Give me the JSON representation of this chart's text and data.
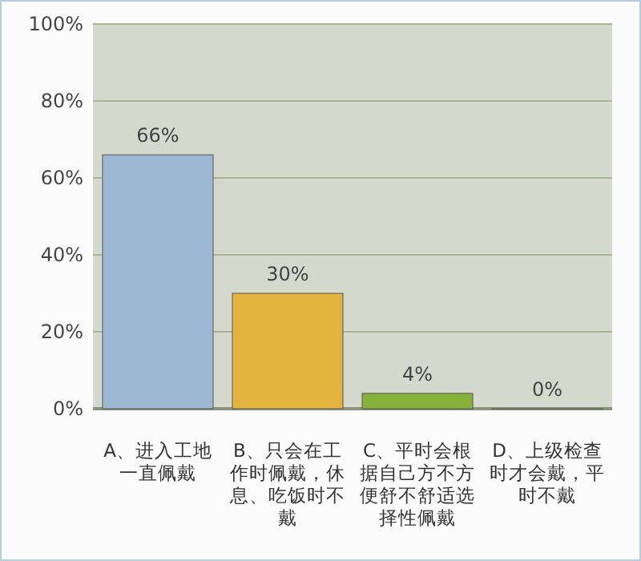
{
  "chart_data": {
    "type": "bar",
    "categories": [
      "A、进入工地一直佩戴",
      "B、只会在工作时佩戴，休息、吃饭时不戴",
      "C、平时会根据自己方不方便舒不舒适选择性佩戴",
      "D、上级检查时才会戴，平时不戴"
    ],
    "values": [
      66,
      30,
      4,
      0
    ],
    "colors": [
      "#9db8d2",
      "#e2b43e",
      "#86b23a",
      "#f0a080"
    ],
    "value_labels": [
      "66%",
      "30%",
      "4%",
      "0%"
    ],
    "ylim": [
      0,
      100
    ],
    "yticks": [
      {
        "value": 0,
        "label": "0%"
      },
      {
        "value": 20,
        "label": "20%"
      },
      {
        "value": 40,
        "label": "40%"
      },
      {
        "value": 60,
        "label": "60%"
      },
      {
        "value": 80,
        "label": "80%"
      },
      {
        "value": 100,
        "label": "100%"
      }
    ],
    "grid": "y"
  }
}
